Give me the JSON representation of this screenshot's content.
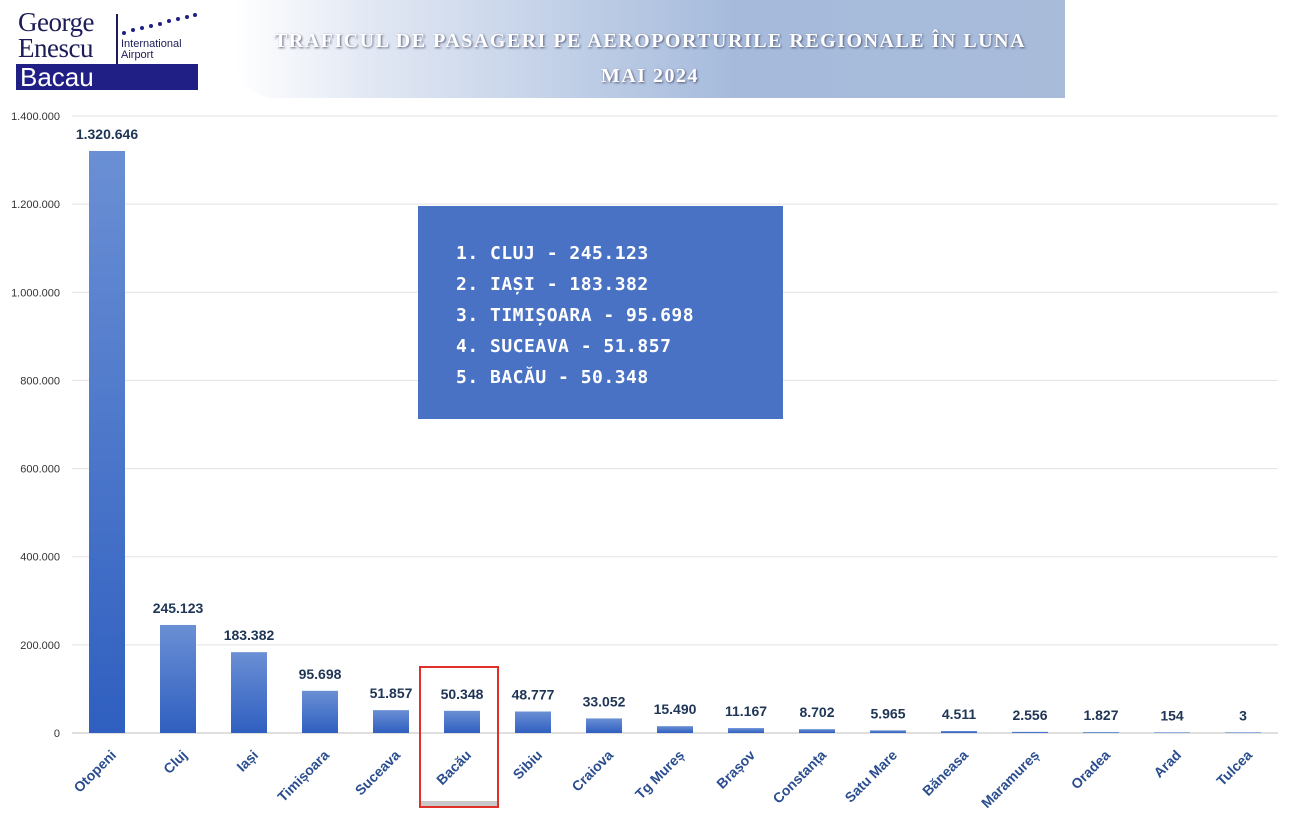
{
  "logo": {
    "line1": "George",
    "line2": "Enescu",
    "line3": "International",
    "line4": "Airport",
    "city": "Bacau"
  },
  "title_line1": "TRAFICUL DE PASAGERI PE AEROPORTURILE REGIONALE ÎN LUNA",
  "title_line2": "MAI 2024",
  "ranking": [
    "1.  CLUJ - 245.123",
    "2.  IAȘI - 183.382",
    "3.  TIMIȘOARA - 95.698",
    "4.  SUCEAVA - 51.857",
    "5.  BACĂU - 50.348"
  ],
  "colors": {
    "bar_top": "#6a8fd4",
    "bar_bottom": "#2f5fc0",
    "highlight_border": "#e0302a",
    "ranking_bg": "#4a72c4"
  },
  "chart_data": {
    "type": "bar",
    "title": "TRAFICUL DE PASAGERI PE AEROPORTURILE REGIONALE ÎN LUNA MAI 2024",
    "categories": [
      "Otopeni",
      "Cluj",
      "Iași",
      "Timișoara",
      "Suceava",
      "Bacău",
      "Sibiu",
      "Craiova",
      "Tg Mureș",
      "Brașov",
      "Constanța",
      "Satu Mare",
      "Băneasa",
      "Maramureș",
      "Oradea",
      "Arad",
      "Tulcea"
    ],
    "values": [
      1320646,
      245123,
      183382,
      95698,
      51857,
      50348,
      48777,
      33052,
      15490,
      11167,
      8702,
      5965,
      4511,
      2556,
      1827,
      154,
      3
    ],
    "value_labels": [
      "1.320.646",
      "245.123",
      "183.382",
      "95.698",
      "51.857",
      "50.348",
      "48.777",
      "33.052",
      "15.490",
      "11.167",
      "8.702",
      "5.965",
      "4.511",
      "2.556",
      "1.827",
      "154",
      "3"
    ],
    "ylim": [
      0,
      1400000
    ],
    "yticks": [
      0,
      200000,
      400000,
      600000,
      800000,
      1000000,
      1200000,
      1400000
    ],
    "ytick_labels": [
      "0",
      "200.000",
      "400.000",
      "600.000",
      "800.000",
      "1.000.000",
      "1.200.000",
      "1.400.000"
    ],
    "highlighted_category": "Bacău",
    "grid": true,
    "xlabel": "",
    "ylabel": ""
  }
}
